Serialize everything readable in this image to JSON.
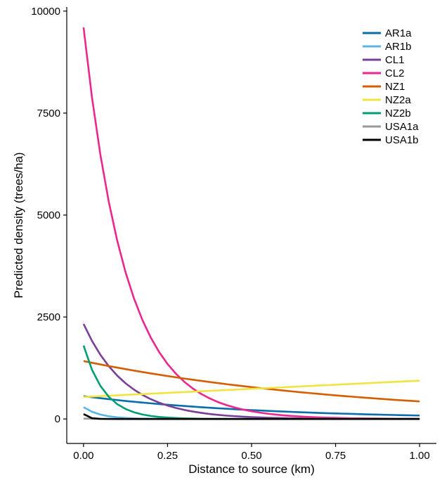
{
  "chart_data": {
    "type": "line",
    "title": "",
    "xlabel": "Distance to source (km)",
    "ylabel": "Predicted density (trees/ha)",
    "xlim": [
      -0.05,
      1.05
    ],
    "ylim": [
      -600,
      10100
    ],
    "xticks": [
      0.0,
      0.25,
      0.5,
      0.75,
      1.0
    ],
    "xtick_labels": [
      "0.00",
      "0.25",
      "0.50",
      "0.75",
      "1.00"
    ],
    "yticks": [
      0,
      2500,
      5000,
      7500,
      10000
    ],
    "ytick_labels": [
      "0",
      "2500",
      "5000",
      "7500",
      "10000"
    ],
    "grid": false,
    "legend_position": "top-right",
    "x": [
      0,
      0.025,
      0.05,
      0.075,
      0.1,
      0.125,
      0.15,
      0.175,
      0.2,
      0.225,
      0.25,
      0.275,
      0.3,
      0.325,
      0.35,
      0.375,
      0.4,
      0.425,
      0.45,
      0.475,
      0.5,
      0.525,
      0.55,
      0.575,
      0.6,
      0.625,
      0.65,
      0.675,
      0.7,
      0.725,
      0.75,
      0.775,
      0.8,
      0.825,
      0.85,
      0.875,
      0.9,
      0.925,
      0.95,
      0.975,
      1.0
    ],
    "series": [
      {
        "name": "AR1a",
        "color": "#0a6eaa",
        "values": [
          560,
          534,
          510,
          486,
          464,
          442,
          422,
          402,
          384,
          366,
          349,
          333,
          318,
          303,
          289,
          276,
          263,
          251,
          239,
          228,
          218,
          208,
          198,
          189,
          180,
          172,
          164,
          157,
          149,
          142,
          136,
          130,
          124,
          118,
          112,
          107,
          102,
          98,
          93,
          89,
          85
        ]
      },
      {
        "name": "AR1b",
        "color": "#5bb4e6",
        "values": [
          290,
          178,
          109,
          67,
          41,
          25,
          15,
          9,
          6,
          4,
          2,
          1,
          1,
          0,
          0,
          0,
          0,
          0,
          0,
          0,
          0,
          0,
          0,
          0,
          0,
          0,
          0,
          0,
          0,
          0,
          0,
          0,
          0,
          0,
          0,
          0,
          0,
          0,
          0,
          0,
          0
        ]
      },
      {
        "name": "CL1",
        "color": "#7b3f98",
        "values": [
          2330,
          1916,
          1575,
          1295,
          1065,
          875,
          720,
          592,
          486,
          400,
          329,
          270,
          222,
          183,
          150,
          123,
          101,
          83,
          69,
          56,
          46,
          38,
          31,
          26,
          21,
          17,
          14,
          12,
          10,
          8,
          6,
          5,
          4,
          4,
          3,
          2,
          2,
          2,
          1,
          1,
          1
        ]
      },
      {
        "name": "CL2",
        "color": "#ec268f",
        "values": [
          9600,
          7889,
          6483,
          5327,
          4378,
          3597,
          2956,
          2429,
          1996,
          1640,
          1348,
          1108,
          910,
          748,
          615,
          505,
          415,
          341,
          280,
          230,
          189,
          156,
          128,
          105,
          86,
          71,
          58,
          48,
          39,
          32,
          27,
          22,
          18,
          15,
          12,
          10,
          8,
          7,
          6,
          5,
          4
        ]
      },
      {
        "name": "NZ1",
        "color": "#d55e00",
        "values": [
          1420,
          1378,
          1337,
          1298,
          1260,
          1223,
          1187,
          1152,
          1118,
          1085,
          1053,
          1022,
          992,
          963,
          934,
          907,
          880,
          854,
          829,
          805,
          781,
          758,
          736,
          714,
          693,
          673,
          653,
          634,
          615,
          597,
          579,
          562,
          546,
          530,
          514,
          499,
          484,
          470,
          456,
          443,
          430
        ]
      },
      {
        "name": "NZ2a",
        "color": "#f0e442",
        "values": [
          540,
          550,
          560,
          570,
          580,
          590,
          600,
          610,
          620,
          630,
          640,
          650,
          660,
          670,
          680,
          690,
          700,
          710,
          720,
          730,
          740,
          750,
          760,
          770,
          780,
          790,
          800,
          810,
          820,
          830,
          840,
          850,
          860,
          870,
          880,
          890,
          900,
          910,
          920,
          930,
          940
        ]
      },
      {
        "name": "NZ2b",
        "color": "#009e73",
        "values": [
          1800,
          1209,
          812,
          545,
          366,
          246,
          165,
          111,
          74,
          50,
          34,
          23,
          15,
          10,
          7,
          5,
          3,
          2,
          1,
          1,
          1,
          0,
          0,
          0,
          0,
          0,
          0,
          0,
          0,
          0,
          0,
          0,
          0,
          0,
          0,
          0,
          0,
          0,
          0,
          0,
          0
        ]
      },
      {
        "name": "USA1a",
        "color": "#999999",
        "values": [
          8,
          6,
          4,
          3,
          2,
          1,
          1,
          1,
          0,
          0,
          0,
          0,
          0,
          0,
          0,
          0,
          0,
          0,
          0,
          0,
          0,
          0,
          0,
          0,
          0,
          0,
          0,
          0,
          0,
          0,
          0,
          0,
          0,
          0,
          0,
          0,
          0,
          0,
          0,
          0,
          0
        ]
      },
      {
        "name": "USA1b",
        "color": "#000000",
        "values": [
          120,
          20,
          3,
          1,
          0,
          0,
          0,
          0,
          0,
          0,
          0,
          0,
          0,
          0,
          0,
          0,
          0,
          0,
          0,
          0,
          0,
          0,
          0,
          0,
          0,
          0,
          0,
          0,
          0,
          0,
          0,
          0,
          0,
          0,
          0,
          0,
          0,
          0,
          0,
          0,
          0
        ]
      }
    ]
  }
}
